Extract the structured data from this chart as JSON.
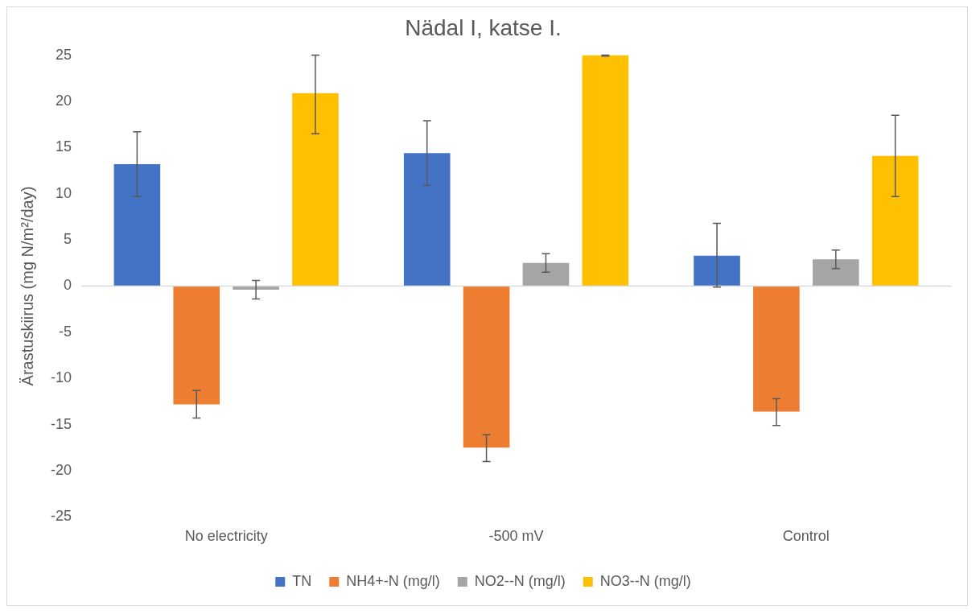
{
  "chart_data": {
    "type": "bar",
    "title": "Nädal I, katse I.",
    "ylabel": "Ärastuskiirus (mg N/m²/day)",
    "categories": [
      "No electricity",
      "-500 mV",
      "Control"
    ],
    "series": [
      {
        "name": "TN",
        "color": "#4472c4",
        "values": [
          13.2,
          14.4,
          3.3
        ],
        "errors": [
          [
            9.7,
            16.7
          ],
          [
            10.9,
            17.9
          ],
          [
            -0.1,
            6.8
          ]
        ]
      },
      {
        "name": "NH4+-N (mg/l)",
        "color": "#ed7d31",
        "values": [
          -12.8,
          -17.5,
          -13.6
        ],
        "errors": [
          [
            -14.3,
            -11.3
          ],
          [
            -19.0,
            -16.1
          ],
          [
            -15.1,
            -12.2
          ]
        ]
      },
      {
        "name": "NO2--N (mg/l)",
        "color": "#a5a5a5",
        "values": [
          -0.4,
          2.5,
          2.9
        ],
        "errors": [
          [
            -1.4,
            0.6
          ],
          [
            1.5,
            3.5
          ],
          [
            1.9,
            3.9
          ]
        ]
      },
      {
        "name": "NO3--N (mg/l)",
        "color": "#ffc000",
        "values": [
          20.9,
          25,
          14.1
        ],
        "errors": [
          [
            16.5,
            25
          ],
          [
            24.9,
            25
          ],
          [
            9.7,
            18.5
          ]
        ]
      }
    ],
    "ylim": [
      -25,
      25
    ],
    "yticks": [
      -25,
      -20,
      -15,
      -10,
      -5,
      0,
      5,
      10,
      15,
      20,
      25
    ],
    "ref_lines": [
      {
        "axis": "y",
        "value": 0,
        "color": "#d9d9d9"
      }
    ],
    "grid": false,
    "legend": "bottom"
  }
}
